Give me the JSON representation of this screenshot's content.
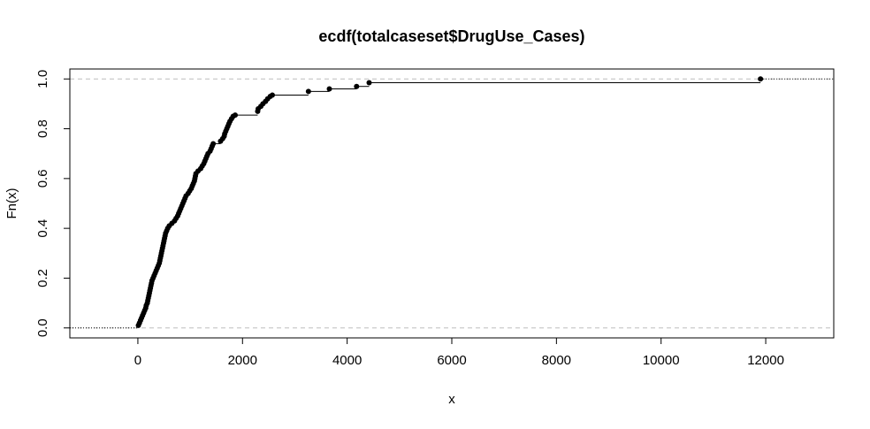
{
  "chart_data": {
    "type": "scatter",
    "subtype": "ecdf-step",
    "title": "ecdf(totalcaseset$DrugUse_Cases)",
    "xlabel": "x",
    "ylabel": "Fn(x)",
    "xlim": [
      -1300,
      13300
    ],
    "ylim": [
      -0.04,
      1.04
    ],
    "x_ticks": [
      0,
      2000,
      4000,
      6000,
      8000,
      10000,
      12000
    ],
    "y_ticks": [
      0.0,
      0.2,
      0.4,
      0.6,
      0.8,
      1.0
    ],
    "x_tick_labels": [
      "0",
      "2000",
      "4000",
      "6000",
      "8000",
      "10000",
      "12000"
    ],
    "y_tick_labels": [
      "0.0",
      "0.2",
      "0.4",
      "0.6",
      "0.8",
      "1.0"
    ],
    "reference_lines_y": [
      0,
      1
    ],
    "colors": {
      "points": "#000000",
      "step_line": "#000000",
      "reference_lines": "#bebebe",
      "frame": "#000000"
    },
    "points": [
      [
        10,
        0.01
      ],
      [
        30,
        0.02
      ],
      [
        50,
        0.03
      ],
      [
        70,
        0.04
      ],
      [
        90,
        0.05
      ],
      [
        110,
        0.06
      ],
      [
        130,
        0.07
      ],
      [
        150,
        0.08
      ],
      [
        160,
        0.09
      ],
      [
        180,
        0.1
      ],
      [
        190,
        0.11
      ],
      [
        200,
        0.12
      ],
      [
        210,
        0.13
      ],
      [
        220,
        0.14
      ],
      [
        230,
        0.15
      ],
      [
        240,
        0.16
      ],
      [
        250,
        0.17
      ],
      [
        260,
        0.18
      ],
      [
        270,
        0.19
      ],
      [
        290,
        0.2
      ],
      [
        310,
        0.21
      ],
      [
        330,
        0.22
      ],
      [
        350,
        0.23
      ],
      [
        370,
        0.24
      ],
      [
        390,
        0.25
      ],
      [
        410,
        0.26
      ],
      [
        420,
        0.27
      ],
      [
        430,
        0.28
      ],
      [
        440,
        0.29
      ],
      [
        450,
        0.3
      ],
      [
        460,
        0.31
      ],
      [
        470,
        0.32
      ],
      [
        480,
        0.33
      ],
      [
        490,
        0.34
      ],
      [
        500,
        0.35
      ],
      [
        510,
        0.36
      ],
      [
        520,
        0.37
      ],
      [
        530,
        0.38
      ],
      [
        550,
        0.39
      ],
      [
        570,
        0.4
      ],
      [
        600,
        0.41
      ],
      [
        650,
        0.42
      ],
      [
        700,
        0.43
      ],
      [
        730,
        0.44
      ],
      [
        760,
        0.45
      ],
      [
        780,
        0.46
      ],
      [
        800,
        0.47
      ],
      [
        820,
        0.48
      ],
      [
        840,
        0.49
      ],
      [
        860,
        0.5
      ],
      [
        880,
        0.51
      ],
      [
        900,
        0.52
      ],
      [
        920,
        0.53
      ],
      [
        960,
        0.54
      ],
      [
        990,
        0.55
      ],
      [
        1020,
        0.56
      ],
      [
        1040,
        0.57
      ],
      [
        1060,
        0.58
      ],
      [
        1080,
        0.59
      ],
      [
        1090,
        0.6
      ],
      [
        1100,
        0.61
      ],
      [
        1110,
        0.62
      ],
      [
        1150,
        0.63
      ],
      [
        1200,
        0.64
      ],
      [
        1230,
        0.65
      ],
      [
        1260,
        0.66
      ],
      [
        1280,
        0.67
      ],
      [
        1300,
        0.68
      ],
      [
        1320,
        0.69
      ],
      [
        1340,
        0.7
      ],
      [
        1380,
        0.71
      ],
      [
        1400,
        0.72
      ],
      [
        1420,
        0.73
      ],
      [
        1440,
        0.74
      ],
      [
        1580,
        0.75
      ],
      [
        1620,
        0.76
      ],
      [
        1650,
        0.77
      ],
      [
        1660,
        0.78
      ],
      [
        1680,
        0.79
      ],
      [
        1700,
        0.8
      ],
      [
        1720,
        0.81
      ],
      [
        1740,
        0.82
      ],
      [
        1760,
        0.83
      ],
      [
        1790,
        0.84
      ],
      [
        1820,
        0.85
      ],
      [
        1860,
        0.855
      ],
      [
        2290,
        0.87
      ],
      [
        2300,
        0.88
      ],
      [
        2350,
        0.89
      ],
      [
        2390,
        0.9
      ],
      [
        2440,
        0.91
      ],
      [
        2480,
        0.92
      ],
      [
        2530,
        0.93
      ],
      [
        2570,
        0.935
      ],
      [
        3260,
        0.95
      ],
      [
        3660,
        0.96
      ],
      [
        4180,
        0.97
      ],
      [
        4420,
        0.985
      ],
      [
        11900,
        1.0
      ]
    ]
  }
}
